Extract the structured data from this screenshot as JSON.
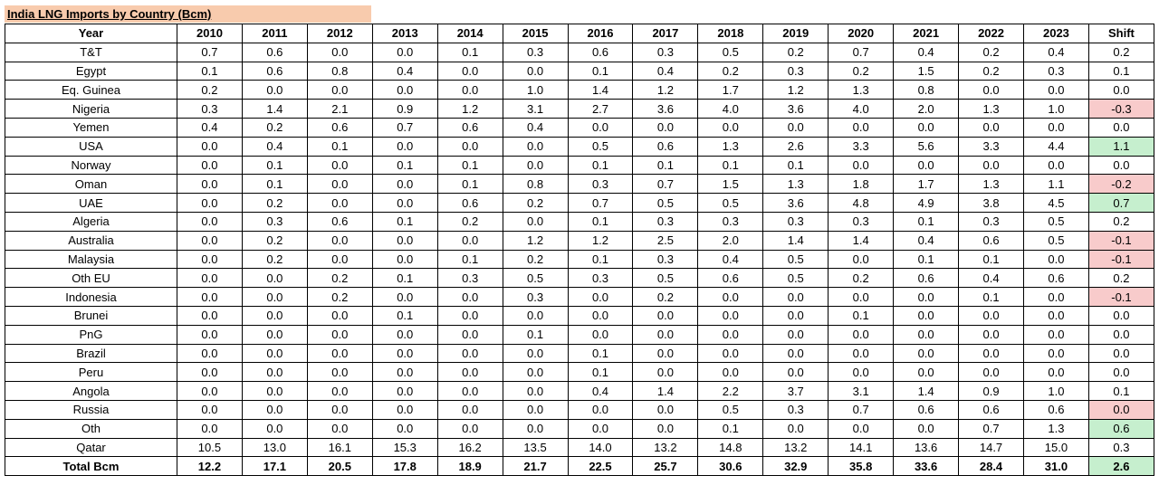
{
  "header": {
    "title": "India LNG Imports by Country (Bcm)"
  },
  "table": {
    "header": [
      "Year",
      "2010",
      "2011",
      "2012",
      "2013",
      "2014",
      "2015",
      "2016",
      "2017",
      "2018",
      "2019",
      "2020",
      "2021",
      "2022",
      "2023",
      "Shift"
    ],
    "rows": [
      {
        "cells": [
          "T&T",
          "0.7",
          "0.6",
          "0.0",
          "0.0",
          "0.1",
          "0.3",
          "0.6",
          "0.3",
          "0.5",
          "0.2",
          "0.7",
          "0.4",
          "0.2",
          "0.4",
          "0.2"
        ]
      },
      {
        "cells": [
          "Egypt",
          "0.1",
          "0.6",
          "0.8",
          "0.4",
          "0.0",
          "0.0",
          "0.1",
          "0.4",
          "0.2",
          "0.3",
          "0.2",
          "1.5",
          "0.2",
          "0.3",
          "0.1"
        ]
      },
      {
        "cells": [
          "Eq. Guinea",
          "0.2",
          "0.0",
          "0.0",
          "0.0",
          "0.0",
          "1.0",
          "1.4",
          "1.2",
          "1.7",
          "1.2",
          "1.3",
          "0.8",
          "0.0",
          "0.0",
          "0.0"
        ]
      },
      {
        "cells": [
          "Nigeria",
          "0.3",
          "1.4",
          "2.1",
          "0.9",
          "1.2",
          "3.1",
          "2.7",
          "3.6",
          "4.0",
          "3.6",
          "4.0",
          "2.0",
          "1.3",
          "1.0",
          "-0.3"
        ],
        "shift_color": "#f8cbcb"
      },
      {
        "cells": [
          "Yemen",
          "0.4",
          "0.2",
          "0.6",
          "0.7",
          "0.6",
          "0.4",
          "0.0",
          "0.0",
          "0.0",
          "0.0",
          "0.0",
          "0.0",
          "0.0",
          "0.0",
          "0.0"
        ]
      },
      {
        "cells": [
          "USA",
          "0.0",
          "0.4",
          "0.1",
          "0.0",
          "0.0",
          "0.0",
          "0.5",
          "0.6",
          "1.3",
          "2.6",
          "3.3",
          "5.6",
          "3.3",
          "4.4",
          "1.1"
        ],
        "shift_color": "#c6efce"
      },
      {
        "cells": [
          "Norway",
          "0.0",
          "0.1",
          "0.0",
          "0.1",
          "0.1",
          "0.0",
          "0.1",
          "0.1",
          "0.1",
          "0.1",
          "0.0",
          "0.0",
          "0.0",
          "0.0",
          "0.0"
        ]
      },
      {
        "cells": [
          "Oman",
          "0.0",
          "0.1",
          "0.0",
          "0.0",
          "0.1",
          "0.8",
          "0.3",
          "0.7",
          "1.5",
          "1.3",
          "1.8",
          "1.7",
          "1.3",
          "1.1",
          "-0.2"
        ],
        "shift_color": "#f8cbcb"
      },
      {
        "cells": [
          "UAE",
          "0.0",
          "0.2",
          "0.0",
          "0.0",
          "0.6",
          "0.2",
          "0.7",
          "0.5",
          "0.5",
          "3.6",
          "4.8",
          "4.9",
          "3.8",
          "4.5",
          "0.7"
        ],
        "shift_color": "#c6efce"
      },
      {
        "cells": [
          "Algeria",
          "0.0",
          "0.3",
          "0.6",
          "0.1",
          "0.2",
          "0.0",
          "0.1",
          "0.3",
          "0.3",
          "0.3",
          "0.3",
          "0.1",
          "0.3",
          "0.5",
          "0.2"
        ]
      },
      {
        "cells": [
          "Australia",
          "0.0",
          "0.2",
          "0.0",
          "0.0",
          "0.0",
          "1.2",
          "1.2",
          "2.5",
          "2.0",
          "1.4",
          "1.4",
          "0.4",
          "0.6",
          "0.5",
          "-0.1"
        ],
        "shift_color": "#f8cbcb"
      },
      {
        "cells": [
          "Malaysia",
          "0.0",
          "0.2",
          "0.0",
          "0.0",
          "0.1",
          "0.2",
          "0.1",
          "0.3",
          "0.4",
          "0.5",
          "0.0",
          "0.1",
          "0.1",
          "0.0",
          "-0.1"
        ],
        "shift_color": "#f8cbcb"
      },
      {
        "cells": [
          "Oth EU",
          "0.0",
          "0.0",
          "0.2",
          "0.1",
          "0.3",
          "0.5",
          "0.3",
          "0.5",
          "0.6",
          "0.5",
          "0.2",
          "0.6",
          "0.4",
          "0.6",
          "0.2"
        ]
      },
      {
        "cells": [
          "Indonesia",
          "0.0",
          "0.0",
          "0.2",
          "0.0",
          "0.0",
          "0.3",
          "0.0",
          "0.2",
          "0.0",
          "0.0",
          "0.0",
          "0.0",
          "0.1",
          "0.0",
          "-0.1"
        ],
        "shift_color": "#f8cbcb"
      },
      {
        "cells": [
          "Brunei",
          "0.0",
          "0.0",
          "0.0",
          "0.1",
          "0.0",
          "0.0",
          "0.0",
          "0.0",
          "0.0",
          "0.0",
          "0.1",
          "0.0",
          "0.0",
          "0.0",
          "0.0"
        ]
      },
      {
        "cells": [
          "PnG",
          "0.0",
          "0.0",
          "0.0",
          "0.0",
          "0.0",
          "0.1",
          "0.0",
          "0.0",
          "0.0",
          "0.0",
          "0.0",
          "0.0",
          "0.0",
          "0.0",
          "0.0"
        ]
      },
      {
        "cells": [
          "Brazil",
          "0.0",
          "0.0",
          "0.0",
          "0.0",
          "0.0",
          "0.0",
          "0.1",
          "0.0",
          "0.0",
          "0.0",
          "0.0",
          "0.0",
          "0.0",
          "0.0",
          "0.0"
        ]
      },
      {
        "cells": [
          "Peru",
          "0.0",
          "0.0",
          "0.0",
          "0.0",
          "0.0",
          "0.0",
          "0.1",
          "0.0",
          "0.0",
          "0.0",
          "0.0",
          "0.0",
          "0.0",
          "0.0",
          "0.0"
        ]
      },
      {
        "cells": [
          "Angola",
          "0.0",
          "0.0",
          "0.0",
          "0.0",
          "0.0",
          "0.0",
          "0.4",
          "1.4",
          "2.2",
          "3.7",
          "3.1",
          "1.4",
          "0.9",
          "1.0",
          "0.1"
        ]
      },
      {
        "cells": [
          "Russia",
          "0.0",
          "0.0",
          "0.0",
          "0.0",
          "0.0",
          "0.0",
          "0.0",
          "0.0",
          "0.5",
          "0.3",
          "0.7",
          "0.6",
          "0.6",
          "0.6",
          "0.0"
        ],
        "shift_color": "#f8cbcb"
      },
      {
        "cells": [
          "Oth",
          "0.0",
          "0.0",
          "0.0",
          "0.0",
          "0.0",
          "0.0",
          "0.0",
          "0.0",
          "0.1",
          "0.0",
          "0.0",
          "0.0",
          "0.7",
          "1.3",
          "0.6"
        ],
        "shift_color": "#c6efce"
      },
      {
        "cells": [
          "Qatar",
          "10.5",
          "13.0",
          "16.1",
          "15.3",
          "16.2",
          "13.5",
          "14.0",
          "13.2",
          "14.8",
          "13.2",
          "14.1",
          "13.6",
          "14.7",
          "15.0",
          "0.3"
        ]
      }
    ],
    "total": {
      "cells": [
        "Total Bcm",
        "12.2",
        "17.1",
        "20.5",
        "17.8",
        "18.9",
        "21.7",
        "22.5",
        "25.7",
        "30.6",
        "32.9",
        "35.8",
        "33.6",
        "28.4",
        "31.0",
        "2.6"
      ],
      "shift_color": "#c6efce"
    }
  }
}
